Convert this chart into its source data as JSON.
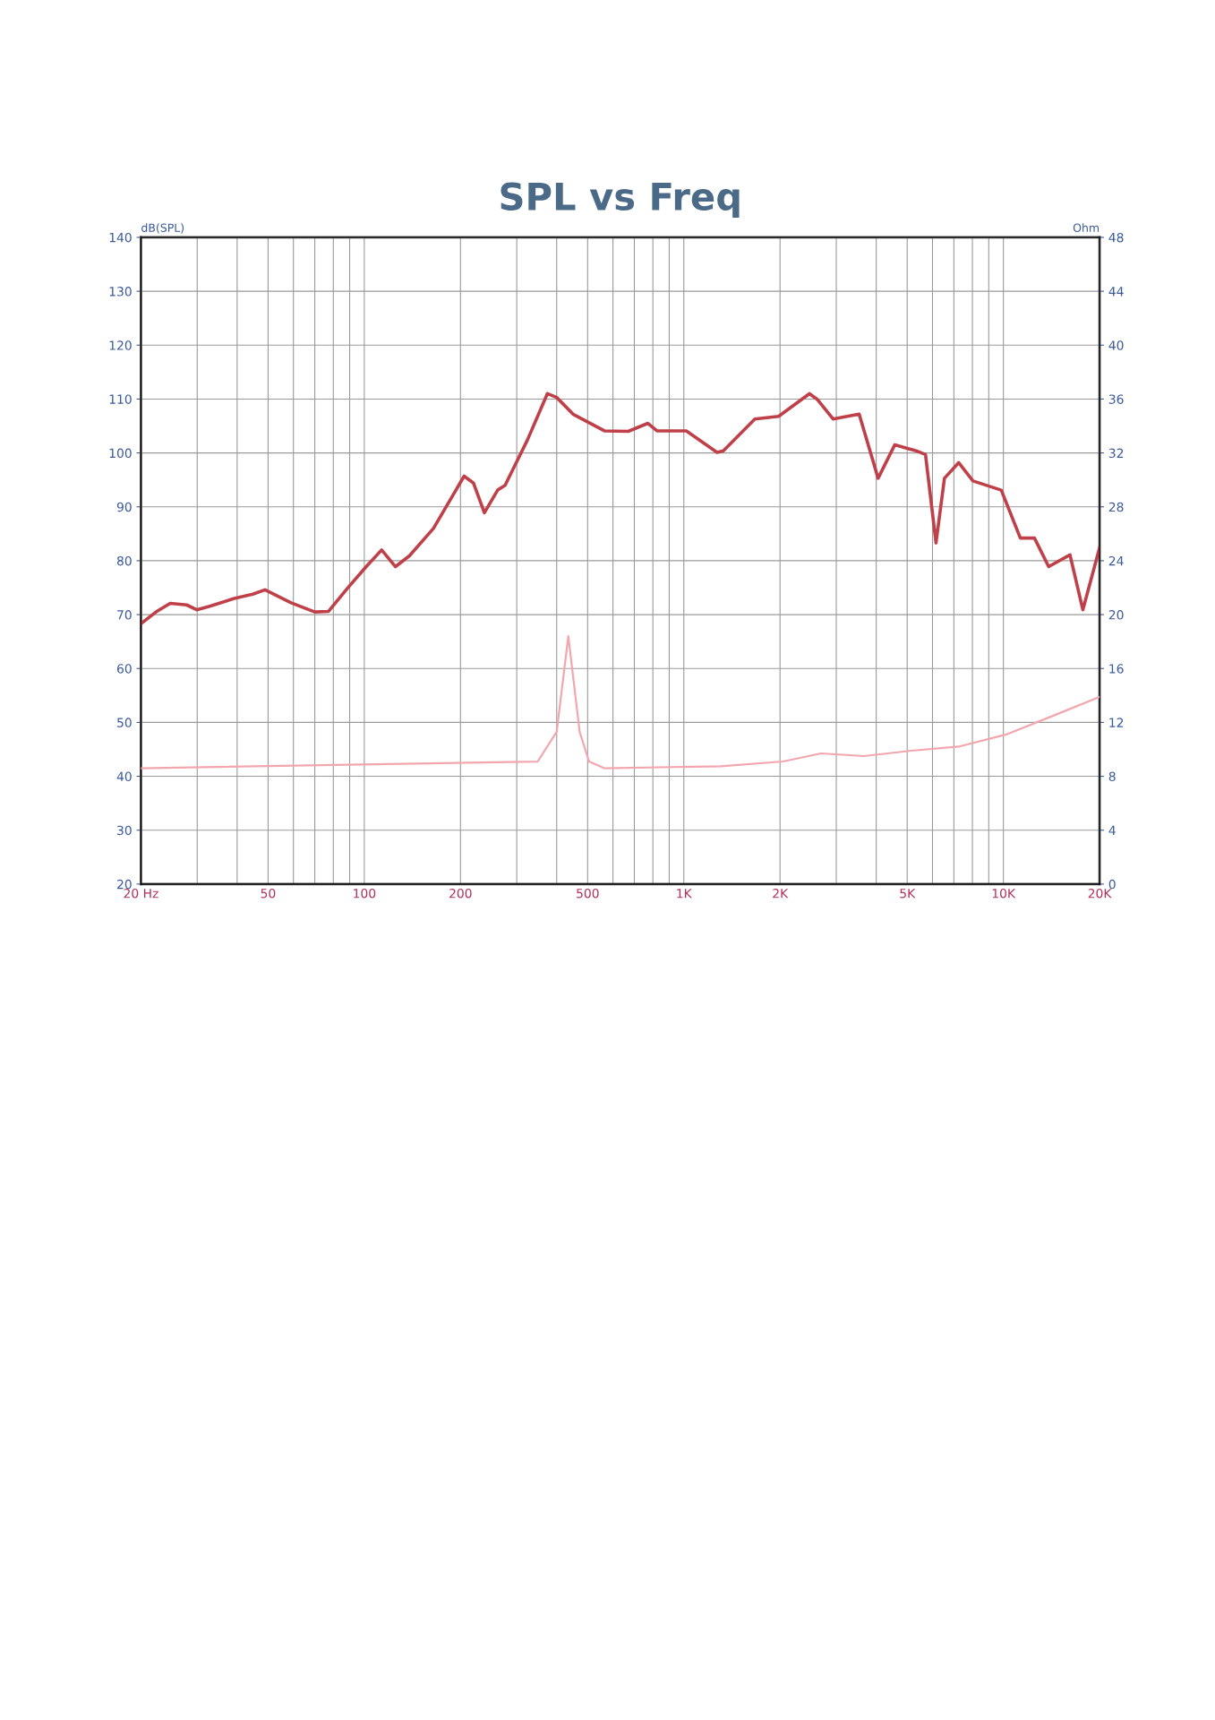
{
  "chart_data": {
    "type": "line",
    "title": "SPL vs Freq",
    "ylabel": "dB(SPL)",
    "y2label": "Ohm",
    "log": "x",
    "grid": true,
    "line_style": "solid",
    "marker": "none",
    "xlim": [
      20,
      20000
    ],
    "xticks": [
      {
        "value": 20,
        "label": "20 Hz"
      },
      50,
      100,
      200,
      500,
      {
        "value": 1000,
        "label": "1K"
      },
      {
        "value": 2000,
        "label": "2K"
      },
      {
        "value": 5000,
        "label": "5K"
      },
      {
        "value": 10000,
        "label": "10K"
      },
      {
        "value": 20000,
        "label": "20K"
      }
    ],
    "ylim": [
      20,
      140
    ],
    "yticks": [
      20,
      30,
      40,
      50,
      60,
      70,
      80,
      90,
      100,
      110,
      120,
      130,
      140
    ],
    "y2lim": [
      0,
      48
    ],
    "y2ticks": [
      0,
      4,
      8,
      12,
      16,
      20,
      24,
      28,
      32,
      36,
      40,
      44,
      48
    ],
    "series": [
      {
        "color": "#c0404a",
        "x": [
          20,
          22.3,
          24.7,
          27.8,
          29.9,
          33,
          39.2,
          44.8,
          48.9,
          59,
          70,
          77.3,
          88.6,
          101.4,
          113.3,
          125.2,
          138.4,
          164.6,
          205.3,
          219.7,
          237.6,
          261.4,
          275.8,
          324,
          374,
          400,
          450,
          564,
          670,
          772,
          824,
          1018,
          1271,
          1330,
          1668,
          1980,
          2472,
          2620,
          2931,
          3537,
          4055,
          4571,
          5329,
          5705,
          6154,
          6540,
          7245,
          8032,
          9850,
          11300,
          12510,
          13860,
          16160,
          17730,
          20000
        ],
        "values": [
          68.3,
          70.5,
          72.1,
          71.8,
          70.9,
          71.6,
          73.0,
          73.8,
          74.6,
          72.2,
          70.5,
          70.6,
          74.9,
          78.9,
          82.0,
          78.9,
          80.9,
          86.0,
          95.7,
          94.4,
          88.9,
          93.1,
          94.0,
          102.4,
          111.0,
          110.3,
          107.2,
          104.1,
          104.0,
          105.5,
          104.1,
          104.1,
          100.1,
          100.4,
          106.3,
          106.8,
          111.0,
          109.9,
          106.3,
          107.2,
          95.3,
          101.5,
          100.4,
          99.7,
          83.3,
          95.3,
          98.2,
          94.8,
          93.1,
          84.2,
          84.2,
          78.9,
          81.1,
          70.9,
          82.4
        ]
      },
      {
        "color": "#f2a6ae",
        "axis": "y2",
        "x": [
          20,
          349,
          400,
          435,
          472,
          505,
          564,
          1304,
          2046,
          2689,
          3660,
          5150,
          7245,
          10200,
          14340,
          20000
        ],
        "values": [
          8.6,
          9.1,
          11.3,
          18.4,
          11.3,
          9.1,
          8.6,
          8.75,
          9.1,
          9.7,
          9.5,
          9.9,
          10.2,
          11.1,
          12.5,
          13.9
        ]
      }
    ]
  }
}
